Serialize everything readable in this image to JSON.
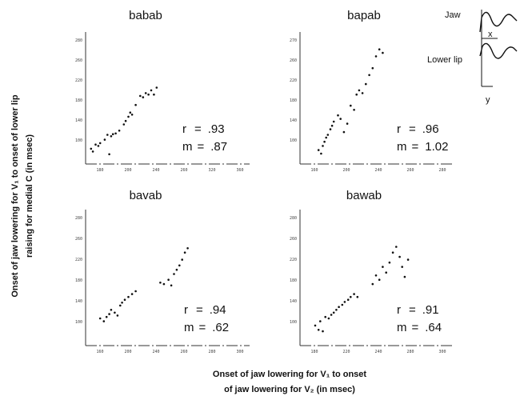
{
  "ylabel_lines": [
    "Onset of jaw lowering for V₁ to onset of lower lip",
    "raising for medial C (in msec)"
  ],
  "xlabel_lines": [
    "Onset of jaw lowering for V₁ to onset",
    "of jaw lowering for V₂ (in msec)"
  ],
  "inset": {
    "jaw": "Jaw",
    "lower_lip": "Lower lip",
    "x": "x",
    "y": "y"
  },
  "chart_data": [
    {
      "type": "scatter",
      "title": "babab",
      "r_label": "r",
      "r_value": ".93",
      "m_label": "m",
      "m_value": ".87",
      "xlim": [
        150,
        330
      ],
      "ylim": [
        90,
        280
      ],
      "xticks": [
        "180",
        "200",
        "240",
        "260",
        "320",
        "360"
      ],
      "yticks": [
        "100",
        "140",
        "180",
        "220",
        "260",
        "280"
      ],
      "points": [
        [
          156,
          112
        ],
        [
          158,
          108
        ],
        [
          161,
          118
        ],
        [
          164,
          116
        ],
        [
          166,
          120
        ],
        [
          171,
          125
        ],
        [
          174,
          132
        ],
        [
          176,
          104
        ],
        [
          178,
          130
        ],
        [
          180,
          133
        ],
        [
          183,
          134
        ],
        [
          187,
          138
        ],
        [
          192,
          147
        ],
        [
          194,
          152
        ],
        [
          197,
          158
        ],
        [
          199,
          164
        ],
        [
          201,
          161
        ],
        [
          205,
          175
        ],
        [
          210,
          188
        ],
        [
          213,
          186
        ],
        [
          216,
          192
        ],
        [
          219,
          190
        ],
        [
          222,
          196
        ],
        [
          225,
          190
        ],
        [
          228,
          200
        ]
      ]
    },
    {
      "type": "scatter",
      "title": "bapab",
      "r_label": "r",
      "r_value": ".96",
      "m_label": "m",
      "m_value": "1.02",
      "xlim": [
        150,
        330
      ],
      "ylim": [
        90,
        280
      ],
      "xticks": [
        "160",
        "200",
        "240",
        "260",
        "280"
      ],
      "yticks": [
        "100",
        "140",
        "180",
        "220",
        "260",
        "270"
      ],
      "points": [
        [
          172,
          110
        ],
        [
          175,
          105
        ],
        [
          177,
          116
        ],
        [
          179,
          122
        ],
        [
          181,
          128
        ],
        [
          183,
          132
        ],
        [
          186,
          140
        ],
        [
          188,
          145
        ],
        [
          190,
          151
        ],
        [
          195,
          160
        ],
        [
          198,
          155
        ],
        [
          202,
          136
        ],
        [
          206,
          148
        ],
        [
          210,
          174
        ],
        [
          214,
          168
        ],
        [
          217,
          190
        ],
        [
          220,
          196
        ],
        [
          224,
          192
        ],
        [
          228,
          205
        ],
        [
          232,
          218
        ],
        [
          236,
          228
        ],
        [
          240,
          245
        ],
        [
          244,
          255
        ],
        [
          248,
          250
        ]
      ]
    },
    {
      "type": "scatter",
      "title": "bavab",
      "r_label": "r",
      "r_value": ".94",
      "m_label": "m",
      "m_value": ".62",
      "xlim": [
        150,
        330
      ],
      "ylim": [
        90,
        280
      ],
      "xticks": [
        "160",
        "200",
        "240",
        "260",
        "280",
        "300"
      ],
      "yticks": [
        "100",
        "140",
        "180",
        "220",
        "260",
        "280"
      ],
      "points": [
        [
          166,
          128
        ],
        [
          170,
          124
        ],
        [
          173,
          130
        ],
        [
          176,
          134
        ],
        [
          178,
          140
        ],
        [
          182,
          136
        ],
        [
          185,
          132
        ],
        [
          188,
          146
        ],
        [
          190,
          150
        ],
        [
          193,
          154
        ],
        [
          197,
          158
        ],
        [
          201,
          162
        ],
        [
          205,
          166
        ],
        [
          232,
          178
        ],
        [
          236,
          176
        ],
        [
          241,
          182
        ],
        [
          244,
          174
        ],
        [
          247,
          190
        ],
        [
          250,
          196
        ],
        [
          253,
          202
        ],
        [
          256,
          210
        ],
        [
          259,
          220
        ],
        [
          262,
          226
        ]
      ]
    },
    {
      "type": "scatter",
      "title": "bawab",
      "r_label": "r",
      "r_value": ".91",
      "m_label": "m",
      "m_value": ".64",
      "xlim": [
        150,
        330
      ],
      "ylim": [
        90,
        280
      ],
      "xticks": [
        "180",
        "220",
        "240",
        "280",
        "300"
      ],
      "yticks": [
        "100",
        "140",
        "180",
        "220",
        "260",
        "280"
      ],
      "points": [
        [
          168,
          118
        ],
        [
          172,
          112
        ],
        [
          174,
          124
        ],
        [
          177,
          110
        ],
        [
          180,
          130
        ],
        [
          184,
          128
        ],
        [
          187,
          133
        ],
        [
          190,
          136
        ],
        [
          193,
          140
        ],
        [
          196,
          144
        ],
        [
          200,
          147
        ],
        [
          203,
          151
        ],
        [
          207,
          154
        ],
        [
          210,
          158
        ],
        [
          214,
          162
        ],
        [
          218,
          158
        ],
        [
          236,
          176
        ],
        [
          240,
          188
        ],
        [
          244,
          182
        ],
        [
          248,
          200
        ],
        [
          252,
          192
        ],
        [
          256,
          206
        ],
        [
          260,
          220
        ],
        [
          264,
          228
        ],
        [
          268,
          214
        ],
        [
          271,
          200
        ],
        [
          274,
          186
        ],
        [
          278,
          210
        ]
      ]
    }
  ]
}
